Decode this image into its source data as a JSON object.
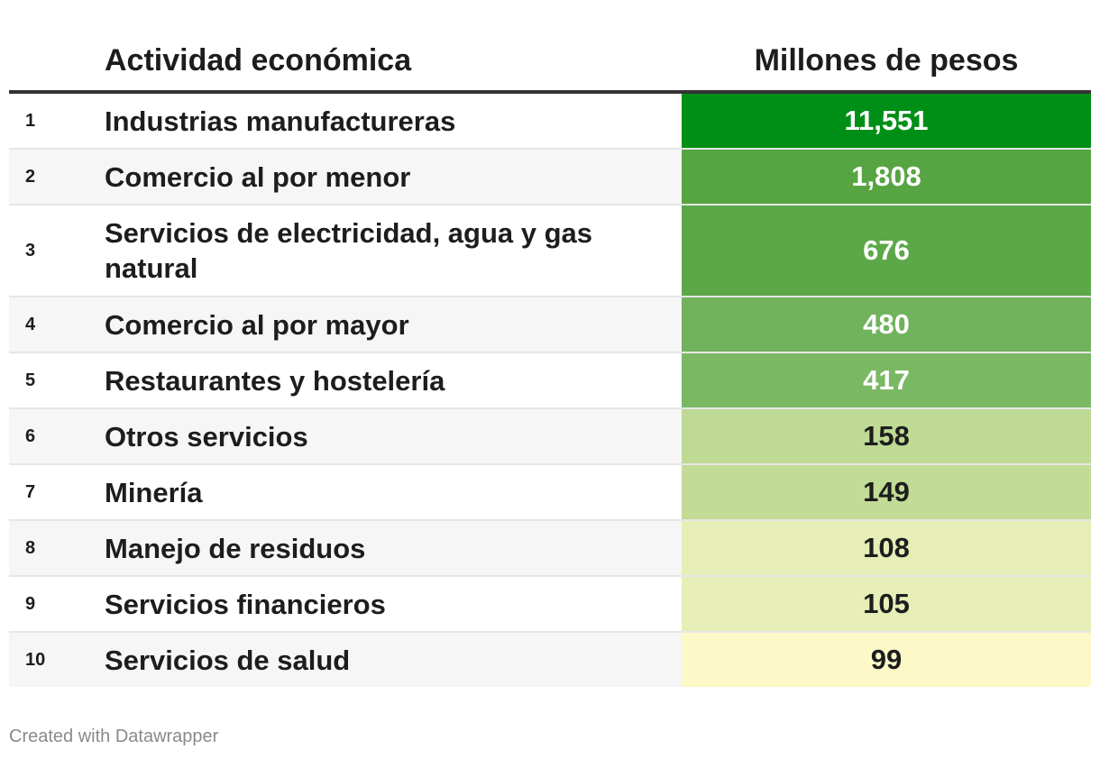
{
  "table": {
    "header": {
      "activity": "Actividad económica",
      "value": "Millones de pesos"
    },
    "rows": [
      {
        "rank": "1",
        "activity": "Industrias manufactureras",
        "value": "11,551",
        "bg": "#008f16",
        "fg": "#ffffff"
      },
      {
        "rank": "2",
        "activity": "Comercio al por menor",
        "value": "1,808",
        "bg": "#57a443",
        "fg": "#ffffff"
      },
      {
        "rank": "3",
        "activity": "Servicios de electricidad, agua y gas natural",
        "value": "676",
        "bg": "#5ca848",
        "fg": "#ffffff"
      },
      {
        "rank": "4",
        "activity": "Comercio al por mayor",
        "value": "480",
        "bg": "#71b25c",
        "fg": "#ffffff"
      },
      {
        "rank": "5",
        "activity": "Restaurantes y hostelería",
        "value": "417",
        "bg": "#7ab864",
        "fg": "#ffffff"
      },
      {
        "rank": "6",
        "activity": "Otros servicios",
        "value": "158",
        "bg": "#bfda94",
        "fg": "#1d1d1d"
      },
      {
        "rank": "7",
        "activity": "Minería",
        "value": "149",
        "bg": "#c2db96",
        "fg": "#1d1d1d"
      },
      {
        "rank": "8",
        "activity": "Manejo de residuos",
        "value": "108",
        "bg": "#e6edb6",
        "fg": "#1d1d1d"
      },
      {
        "rank": "9",
        "activity": "Servicios financieros",
        "value": "105",
        "bg": "#e8eeb8",
        "fg": "#1d1d1d"
      },
      {
        "rank": "10",
        "activity": "Servicios de salud",
        "value": "99",
        "bg": "#fdf8c8",
        "fg": "#1d1d1d"
      }
    ]
  },
  "footer": "Created with Datawrapper",
  "chart_data": {
    "type": "table",
    "columns": [
      "Actividad económica",
      "Millones de pesos"
    ],
    "categories": [
      "Industrias manufactureras",
      "Comercio al por menor",
      "Servicios de electricidad, agua y gas natural",
      "Comercio al por mayor",
      "Restaurantes y hostelería",
      "Otros servicios",
      "Minería",
      "Manejo de residuos",
      "Servicios financieros",
      "Servicios de salud"
    ],
    "values": [
      11551,
      1808,
      676,
      480,
      417,
      158,
      149,
      108,
      105,
      99
    ]
  }
}
